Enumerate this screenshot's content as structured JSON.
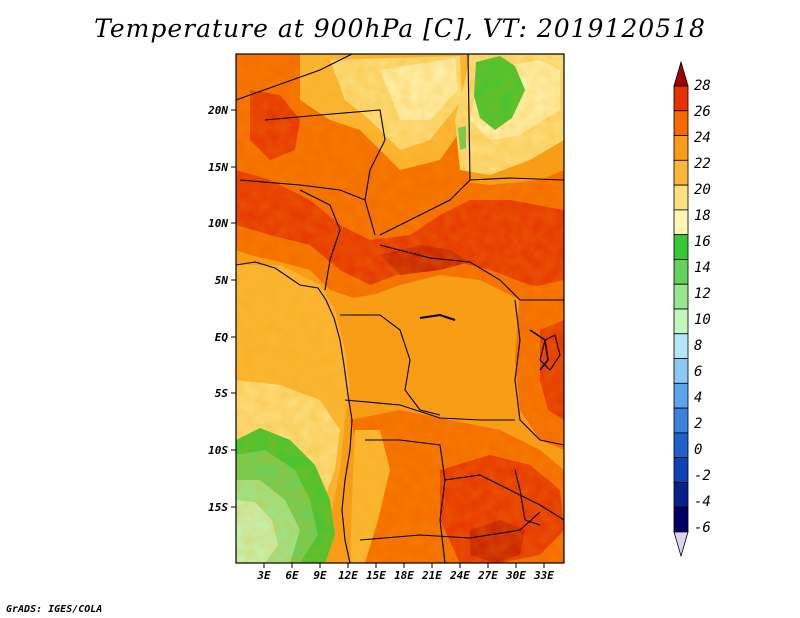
{
  "title": "Temperature at 900hPa [C], VT: 2019120518",
  "credit": "GrADS: IGES/COLA",
  "map": {
    "lat_labels": [
      "20N",
      "15N",
      "10N",
      "5N",
      "EQ",
      "5S",
      "10S",
      "15S"
    ],
    "lon_labels": [
      "3E",
      "6E",
      "9E",
      "12E",
      "15E",
      "18E",
      "21E",
      "24E",
      "27E",
      "30E",
      "33E"
    ]
  },
  "colorbar": {
    "labels": [
      "28",
      "26",
      "24",
      "22",
      "20",
      "18",
      "16",
      "14",
      "12",
      "10",
      "8",
      "6",
      "4",
      "2",
      "0",
      "-2",
      "-4",
      "-6"
    ],
    "colors": [
      "#a00000",
      "#e63200",
      "#f56a00",
      "#f99c1a",
      "#fbb838",
      "#fde080",
      "#fff5b4",
      "#37c837",
      "#63d25c",
      "#96e890",
      "#c2f7bc",
      "#b4e6fa",
      "#8cc8f5",
      "#5aa5ec",
      "#3c82dc",
      "#1f60cc",
      "#0f42b4",
      "#08208c",
      "#000064",
      "#dcd4ec"
    ]
  }
}
